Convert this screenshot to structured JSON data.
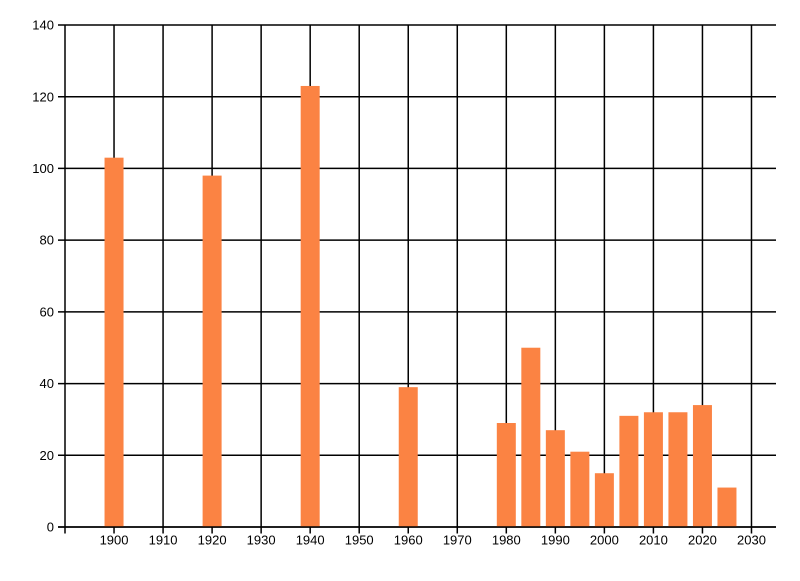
{
  "chart_data": {
    "type": "bar",
    "title": "",
    "xlabel": "",
    "ylabel": "",
    "x": [
      1900,
      1920,
      1940,
      1960,
      1980,
      1985,
      1990,
      1995,
      2000,
      2005,
      2010,
      2015,
      2020,
      2025
    ],
    "values": [
      103,
      98,
      123,
      39,
      29,
      50,
      27,
      21,
      15,
      31,
      32,
      32,
      34,
      11
    ],
    "xlim": [
      1890,
      2035
    ],
    "ylim": [
      0,
      140
    ],
    "x_ticks": [
      1900,
      1910,
      1920,
      1930,
      1940,
      1950,
      1960,
      1970,
      1980,
      1990,
      2000,
      2010,
      2020,
      2030
    ],
    "y_ticks": [
      0,
      20,
      40,
      60,
      80,
      100,
      120,
      140
    ],
    "grid": true,
    "legend": false,
    "bar_color": "#FB8343",
    "axis_color": "#000000",
    "text_color": "#000000",
    "background_color": "#FFFFFF"
  }
}
